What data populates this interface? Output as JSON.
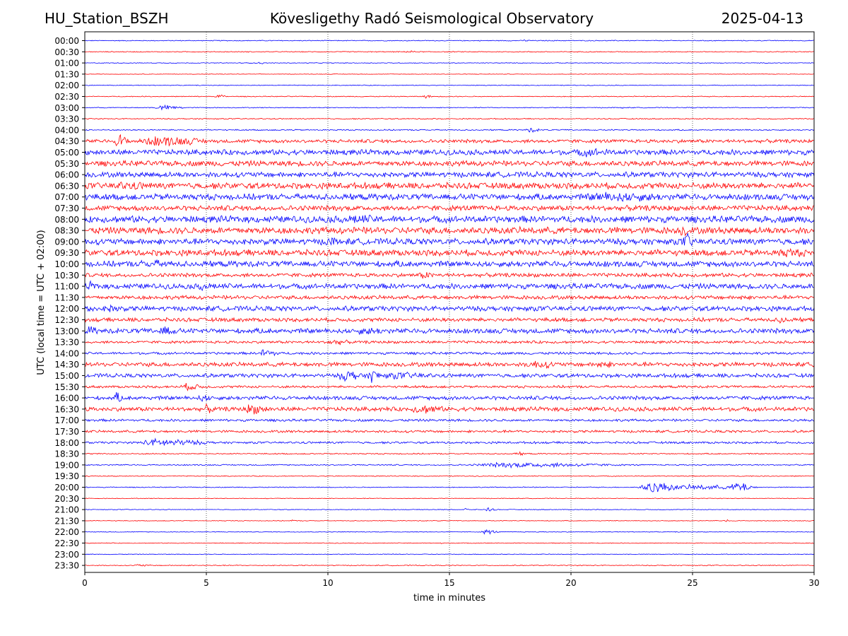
{
  "header": {
    "station": "HU_Station_BSZH",
    "title": "Kövesligethy Radó Seismological Observatory",
    "date": "2025-04-13"
  },
  "chart_data": {
    "type": "line",
    "xlabel": "time in minutes",
    "ylabel": "UTC (local time = UTC + 02:00)",
    "xlim": [
      0,
      30
    ],
    "xticks": [
      "0",
      "5",
      "10",
      "15",
      "20",
      "25",
      "30"
    ],
    "grid": "vertical dotted at 5-minute ticks",
    "colors": [
      "#0000ff",
      "#ff0000"
    ],
    "rows": [
      {
        "label": "00:00",
        "amp": 0.05,
        "events": [
          {
            "x": 18.1,
            "a": 0.14,
            "w": 0.2
          }
        ]
      },
      {
        "label": "00:30",
        "amp": 0.05,
        "events": [
          {
            "x": 13.3,
            "a": 0.18,
            "w": 0.2
          }
        ]
      },
      {
        "label": "01:00",
        "amp": 0.04,
        "events": [
          {
            "x": 7.2,
            "a": 0.18,
            "w": 0.1
          }
        ]
      },
      {
        "label": "01:30",
        "amp": 0.03,
        "events": []
      },
      {
        "label": "02:00",
        "amp": 0.04,
        "events": []
      },
      {
        "label": "02:30",
        "amp": 0.05,
        "events": [
          {
            "x": 5.5,
            "a": 0.25,
            "w": 0.2
          },
          {
            "x": 14.0,
            "a": 0.2,
            "w": 0.2
          }
        ]
      },
      {
        "label": "03:00",
        "amp": 0.05,
        "events": [
          {
            "x": 3.2,
            "a": 0.28,
            "w": 0.6
          },
          {
            "x": 22.1,
            "a": 0.2,
            "w": 0.1
          }
        ]
      },
      {
        "label": "03:30",
        "amp": 0.06,
        "events": []
      },
      {
        "label": "04:00",
        "amp": 0.07,
        "events": [
          {
            "x": 18.3,
            "a": 0.28,
            "w": 0.3
          }
        ]
      },
      {
        "label": "04:30",
        "amp": 0.2,
        "events": [
          {
            "x": 1.4,
            "a": 0.9,
            "w": 0.3
          },
          {
            "x": 3.0,
            "a": 0.6,
            "w": 1.5
          }
        ]
      },
      {
        "label": "05:00",
        "amp": 0.3,
        "events": [
          {
            "x": 20.6,
            "a": 0.5,
            "w": 1.2
          }
        ]
      },
      {
        "label": "05:30",
        "amp": 0.3,
        "events": []
      },
      {
        "label": "06:00",
        "amp": 0.3,
        "events": []
      },
      {
        "label": "06:30",
        "amp": 0.35,
        "events": [
          {
            "x": 1.5,
            "a": 0.5,
            "w": 1.5
          }
        ]
      },
      {
        "label": "07:00",
        "amp": 0.35,
        "events": [
          {
            "x": 21.5,
            "a": 0.6,
            "w": 2.5
          }
        ]
      },
      {
        "label": "07:30",
        "amp": 0.3,
        "events": []
      },
      {
        "label": "08:00",
        "amp": 0.38,
        "events": [
          {
            "x": 11.0,
            "a": 0.55,
            "w": 1.5
          }
        ]
      },
      {
        "label": "08:30",
        "amp": 0.38,
        "events": [
          {
            "x": 24.6,
            "a": 0.7,
            "w": 0.3
          }
        ]
      },
      {
        "label": "09:00",
        "amp": 0.35,
        "events": [
          {
            "x": 10.0,
            "a": 0.55,
            "w": 0.6
          },
          {
            "x": 24.7,
            "a": 0.95,
            "w": 0.3
          }
        ]
      },
      {
        "label": "09:30",
        "amp": 0.35,
        "events": [
          {
            "x": 28.8,
            "a": 0.55,
            "w": 1.0
          }
        ]
      },
      {
        "label": "10:00",
        "amp": 0.33,
        "events": [
          {
            "x": 2.6,
            "a": 0.5,
            "w": 1.2
          }
        ]
      },
      {
        "label": "10:30",
        "amp": 0.22,
        "events": [
          {
            "x": 13.9,
            "a": 0.45,
            "w": 0.4
          }
        ]
      },
      {
        "label": "11:00",
        "amp": 0.3,
        "events": [
          {
            "x": 0.2,
            "a": 0.55,
            "w": 0.3
          },
          {
            "x": 4.8,
            "a": 0.5,
            "w": 0.6
          }
        ]
      },
      {
        "label": "11:30",
        "amp": 0.22,
        "events": [
          {
            "x": 27.0,
            "a": 0.4,
            "w": 0.3
          }
        ]
      },
      {
        "label": "12:00",
        "amp": 0.28,
        "events": [
          {
            "x": 0.1,
            "a": 0.6,
            "w": 0.2
          },
          {
            "x": 1.0,
            "a": 0.5,
            "w": 0.6
          }
        ]
      },
      {
        "label": "12:30",
        "amp": 0.22,
        "events": [
          {
            "x": 28.6,
            "a": 0.5,
            "w": 0.3
          }
        ]
      },
      {
        "label": "13:00",
        "amp": 0.28,
        "events": [
          {
            "x": 0.2,
            "a": 0.55,
            "w": 0.3
          },
          {
            "x": 3.2,
            "a": 0.65,
            "w": 0.5
          },
          {
            "x": 11.5,
            "a": 0.45,
            "w": 1.0
          }
        ]
      },
      {
        "label": "13:30",
        "amp": 0.15,
        "events": [
          {
            "x": 10.2,
            "a": 0.35,
            "w": 0.6
          }
        ]
      },
      {
        "label": "14:00",
        "amp": 0.14,
        "events": [
          {
            "x": 7.4,
            "a": 0.55,
            "w": 0.4
          }
        ]
      },
      {
        "label": "14:30",
        "amp": 0.24,
        "events": [
          {
            "x": 18.5,
            "a": 0.5,
            "w": 0.8
          },
          {
            "x": 21.2,
            "a": 0.5,
            "w": 0.5
          }
        ]
      },
      {
        "label": "15:00",
        "amp": 0.22,
        "events": [
          {
            "x": 10.7,
            "a": 0.65,
            "w": 0.6
          },
          {
            "x": 11.8,
            "a": 0.8,
            "w": 0.3
          },
          {
            "x": 12.8,
            "a": 0.4,
            "w": 1.5
          }
        ]
      },
      {
        "label": "15:30",
        "amp": 0.14,
        "events": [
          {
            "x": 4.2,
            "a": 0.4,
            "w": 0.6
          }
        ]
      },
      {
        "label": "16:00",
        "amp": 0.22,
        "events": [
          {
            "x": 1.3,
            "a": 0.6,
            "w": 0.2
          },
          {
            "x": 4.8,
            "a": 0.45,
            "w": 0.4
          }
        ]
      },
      {
        "label": "16:30",
        "amp": 0.24,
        "events": [
          {
            "x": 5.0,
            "a": 0.5,
            "w": 0.3
          },
          {
            "x": 6.8,
            "a": 0.6,
            "w": 0.6
          },
          {
            "x": 13.8,
            "a": 0.55,
            "w": 0.8
          }
        ]
      },
      {
        "label": "17:00",
        "amp": 0.14,
        "events": []
      },
      {
        "label": "17:30",
        "amp": 0.14,
        "events": []
      },
      {
        "label": "18:00",
        "amp": 0.12,
        "events": [
          {
            "x": 3.0,
            "a": 0.45,
            "w": 1.5
          }
        ]
      },
      {
        "label": "18:30",
        "amp": 0.07,
        "events": [
          {
            "x": 17.8,
            "a": 0.2,
            "w": 0.3
          }
        ]
      },
      {
        "label": "19:00",
        "amp": 0.07,
        "events": [
          {
            "x": 17.5,
            "a": 0.3,
            "w": 3.0
          }
        ]
      },
      {
        "label": "19:30",
        "amp": 0.05,
        "events": []
      },
      {
        "label": "20:00",
        "amp": 0.05,
        "events": [
          {
            "x": 23.3,
            "a": 0.65,
            "w": 0.8
          },
          {
            "x": 25.0,
            "a": 0.3,
            "w": 1.5
          },
          {
            "x": 26.8,
            "a": 0.7,
            "w": 0.4
          }
        ]
      },
      {
        "label": "20:30",
        "amp": 0.04,
        "events": []
      },
      {
        "label": "21:00",
        "amp": 0.04,
        "events": [
          {
            "x": 15.6,
            "a": 0.25,
            "w": 0.1
          },
          {
            "x": 16.6,
            "a": 0.25,
            "w": 0.2
          }
        ]
      },
      {
        "label": "21:30",
        "amp": 0.04,
        "events": [
          {
            "x": 8.5,
            "a": 0.2,
            "w": 0.1
          },
          {
            "x": 26.4,
            "a": 0.2,
            "w": 0.1
          }
        ]
      },
      {
        "label": "22:00",
        "amp": 0.04,
        "events": [
          {
            "x": 16.5,
            "a": 0.3,
            "w": 0.3
          }
        ]
      },
      {
        "label": "22:30",
        "amp": 0.04,
        "events": [
          {
            "x": 14.7,
            "a": 0.2,
            "w": 0.1
          }
        ]
      },
      {
        "label": "23:00",
        "amp": 0.04,
        "events": []
      },
      {
        "label": "23:30",
        "amp": 0.05,
        "events": [
          {
            "x": 2.2,
            "a": 0.15,
            "w": 0.4
          }
        ]
      }
    ]
  }
}
